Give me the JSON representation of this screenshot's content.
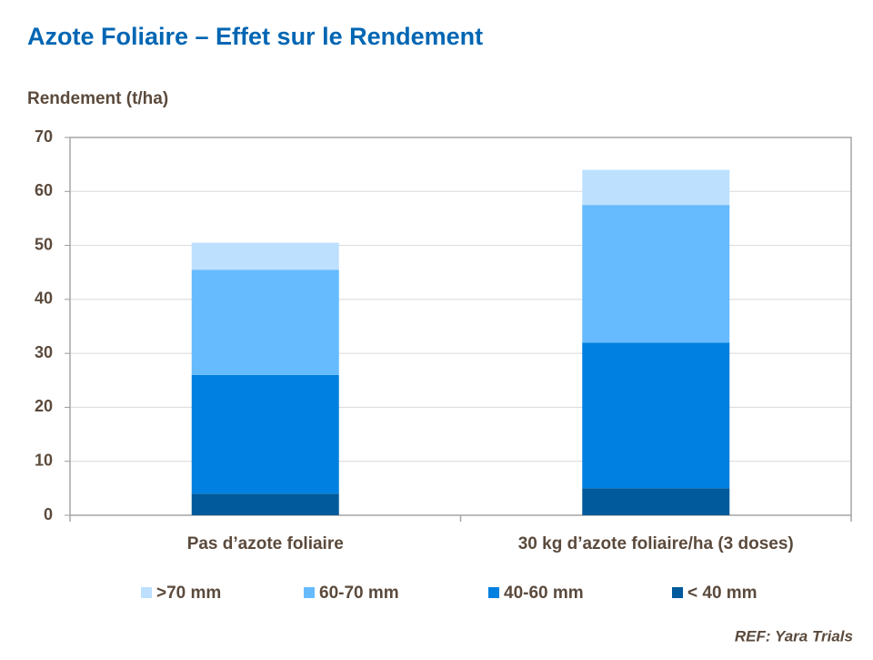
{
  "chart_data": {
    "type": "stacked_bar",
    "title": "Azote Foliaire – Effet sur le Rendement",
    "y_axis_label": "Rendement (t/ha)",
    "reference": "REF: Yara Trials",
    "categories": [
      "Pas d’azote foliaire",
      "30 kg d’azote foliaire/ha (3 doses)"
    ],
    "series": [
      {
        "name": ">70 mm",
        "color": "#bde0ff",
        "values": [
          5,
          6.5
        ]
      },
      {
        "name": "60-70 mm",
        "color": "#66bbff",
        "values": [
          19.5,
          25.5
        ]
      },
      {
        "name": "40-60 mm",
        "color": "#0080e0",
        "values": [
          22,
          27
        ]
      },
      {
        "name": "< 40 mm",
        "color": "#005a9c",
        "values": [
          4,
          5
        ]
      }
    ],
    "ylim": [
      0,
      70
    ],
    "yticks": [
      0,
      10,
      20,
      30,
      40,
      50,
      60,
      70
    ],
    "grid": true
  }
}
